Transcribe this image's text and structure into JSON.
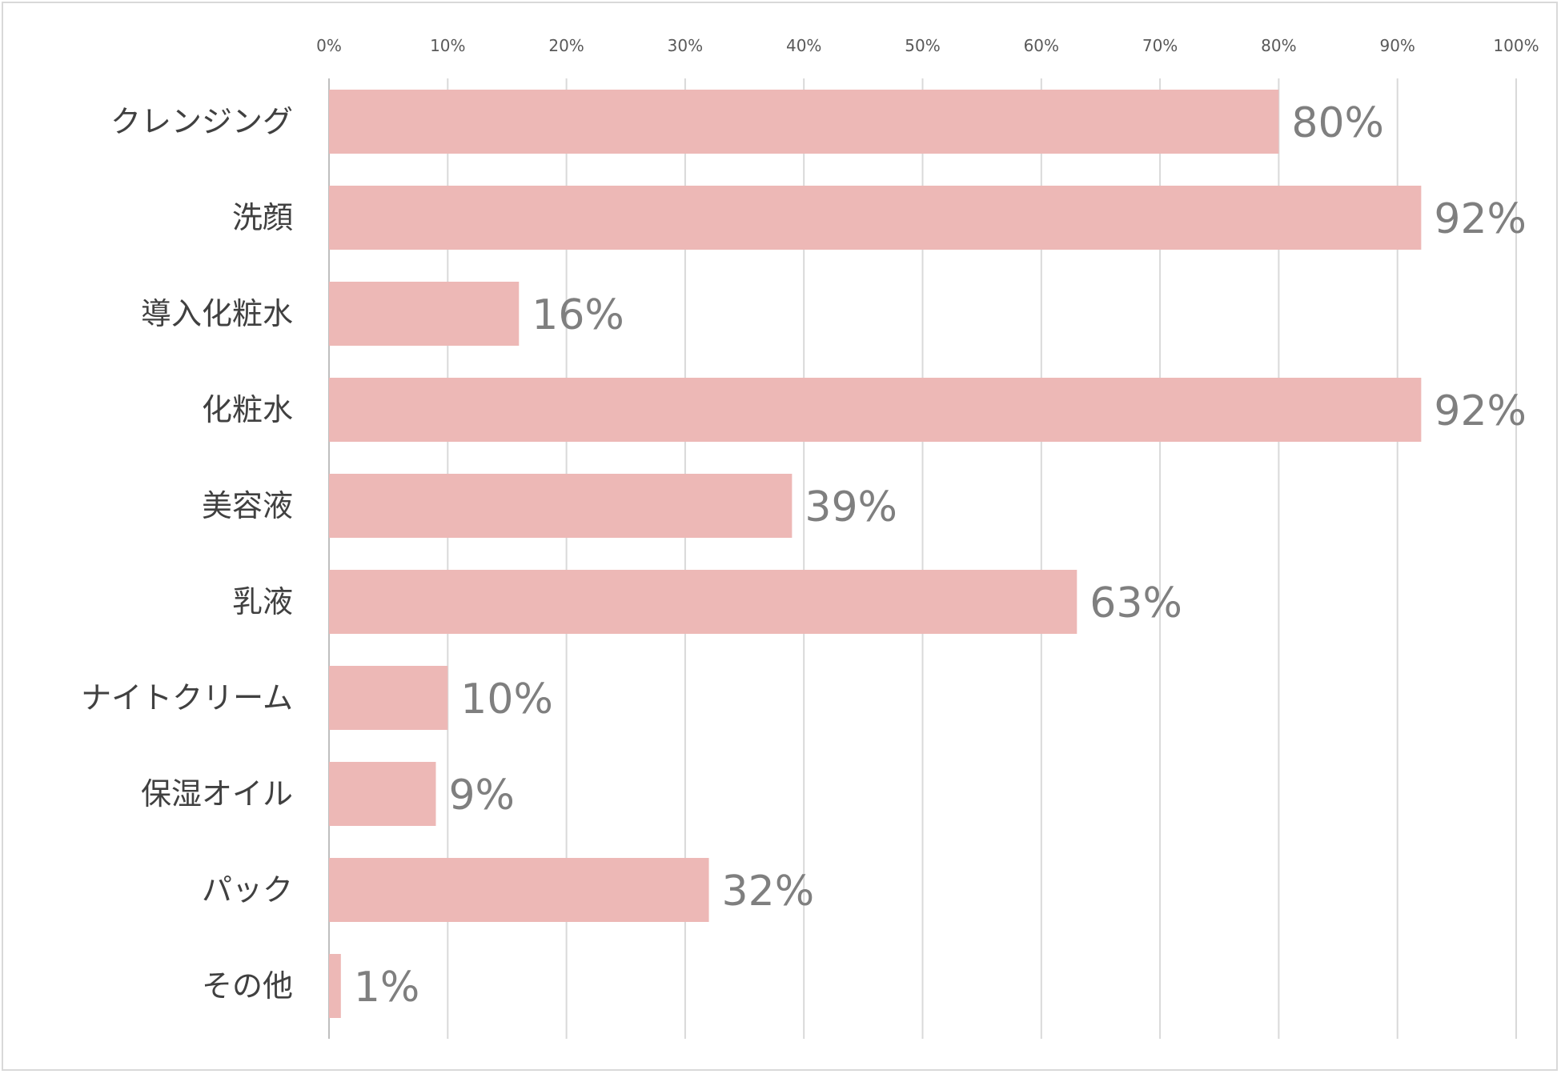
{
  "chart_data": {
    "type": "bar",
    "orientation": "horizontal",
    "title": "",
    "xlabel": "",
    "ylabel": "",
    "categories": [
      "クレンジング",
      "洗顔",
      "導入化粧水",
      "化粧水",
      "美容液",
      "乳液",
      "ナイトクリーム",
      "保湿オイル",
      "パック",
      "その他"
    ],
    "values": [
      80,
      92,
      16,
      92,
      39,
      63,
      10,
      9,
      32,
      1
    ],
    "data_labels": [
      "80%",
      "92%",
      "16%",
      "92%",
      "39%",
      "63%",
      "10%",
      "9%",
      "32%",
      "1%"
    ],
    "xlim": [
      0,
      100
    ],
    "x_ticks": [
      0,
      10,
      20,
      30,
      40,
      50,
      60,
      70,
      80,
      90,
      100
    ],
    "x_tick_labels": [
      "0%",
      "10%",
      "20%",
      "30%",
      "40%",
      "50%",
      "60%",
      "70%",
      "80%",
      "90%",
      "100%"
    ],
    "x_axis_position": "top",
    "grid": true,
    "legend": "none",
    "colors": {
      "bar": "#edb8b6",
      "grid": "#d9d9d9",
      "data_label": "#7f7f7f",
      "category_label": "#404040",
      "tick_label": "#595959"
    }
  }
}
